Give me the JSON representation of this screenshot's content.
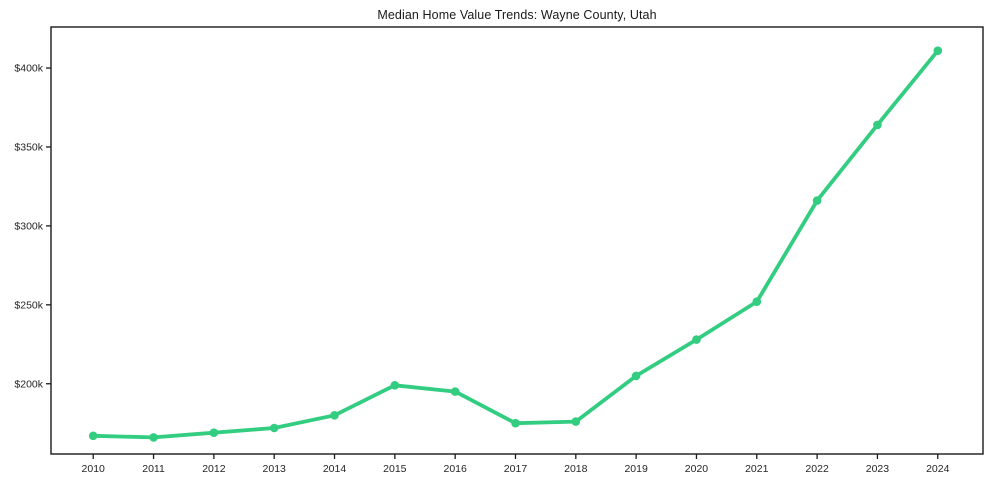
{
  "title": "Median Home Value Trends: Wayne County, Utah",
  "chart_data": {
    "type": "line",
    "title": "Median Home Value Trends: Wayne County, Utah",
    "xlabel": "",
    "ylabel": "",
    "units": "thousand USD",
    "grid": false,
    "legend": "none",
    "line_color": "#32cd80",
    "marker": "circle",
    "x": [
      2010,
      2011,
      2012,
      2013,
      2014,
      2015,
      2016,
      2017,
      2018,
      2019,
      2020,
      2021,
      2022,
      2023,
      2024
    ],
    "series": [
      {
        "name": "Median Home Value",
        "values": [
          167,
          166,
          169,
          172,
          180,
          199,
          195,
          175,
          176,
          205,
          228,
          252,
          316,
          364,
          411
        ]
      }
    ],
    "yticks": [
      {
        "value": 200,
        "label": "$200k"
      },
      {
        "value": 250,
        "label": "$250k"
      },
      {
        "value": 300,
        "label": "$300k"
      },
      {
        "value": 350,
        "label": "$350k"
      },
      {
        "value": 400,
        "label": "$400k"
      }
    ],
    "xtick_labels": [
      "2010",
      "2011",
      "2012",
      "2013",
      "2014",
      "2015",
      "2016",
      "2017",
      "2018",
      "2019",
      "2020",
      "2021",
      "2022",
      "2023",
      "2024"
    ],
    "xlim": [
      2009.3,
      2024.75
    ],
    "ylim": [
      155.5,
      426
    ],
    "axis_color": "#1a1a1a"
  }
}
